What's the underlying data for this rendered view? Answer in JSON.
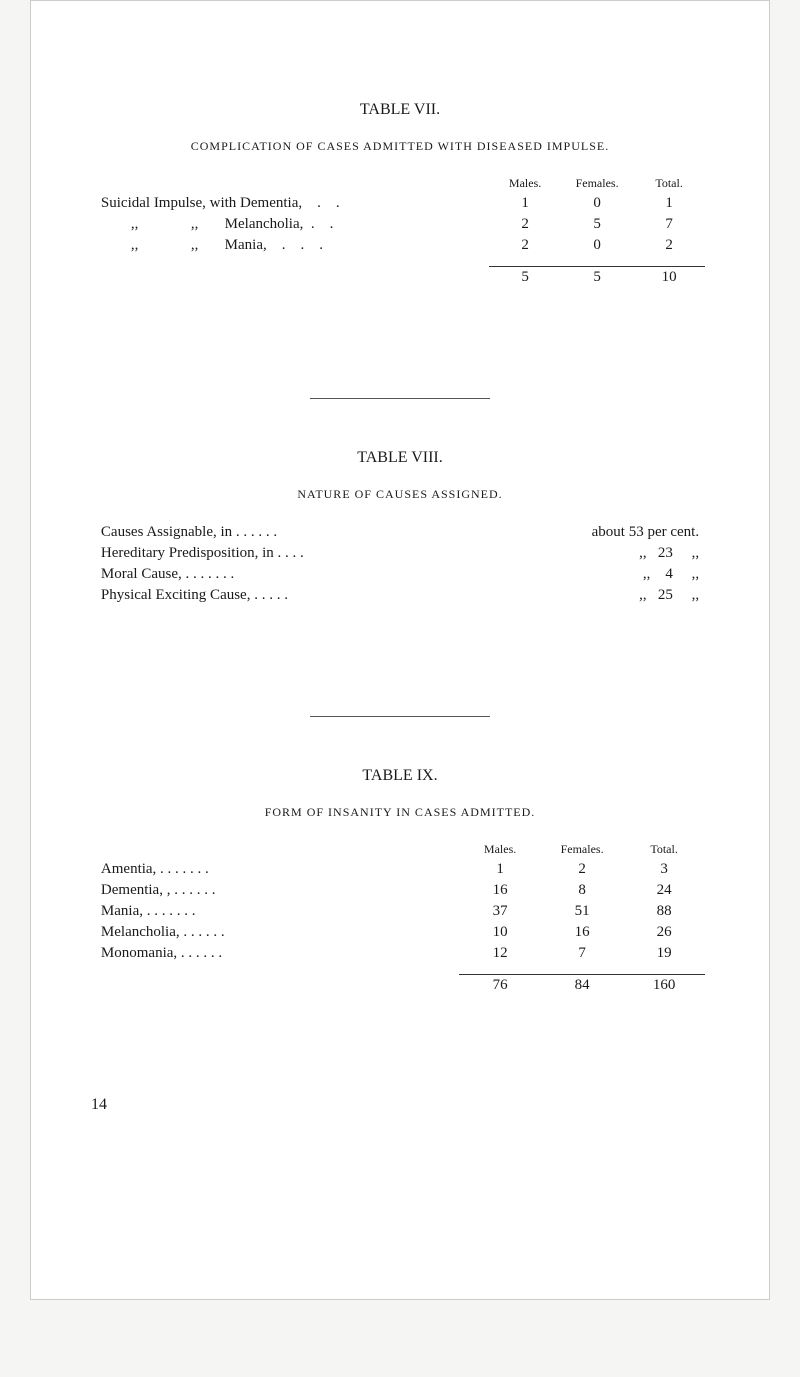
{
  "table7": {
    "title": "TABLE VII.",
    "subtitle": "COMPLICATION OF CASES ADMITTED WITH DISEASED IMPULSE.",
    "headers": {
      "males": "Males.",
      "females": "Females.",
      "total": "Total."
    },
    "rows": [
      {
        "label": "Suicidal Impulse, with Dementia,    .    .",
        "m": "1",
        "f": "0",
        "t": "1"
      },
      {
        "label": "        ,,              ,,       Melancholia,  .    .",
        "m": "2",
        "f": "5",
        "t": "7"
      },
      {
        "label": "        ,,              ,,       Mania,    .    .    .",
        "m": "2",
        "f": "0",
        "t": "2"
      }
    ],
    "totals": {
      "m": "5",
      "f": "5",
      "t": "10"
    }
  },
  "table8": {
    "title": "TABLE VIII.",
    "subtitle": "NATURE OF CAUSES ASSIGNED.",
    "rows": [
      {
        "label": "Causes Assignable, in .       .       .       .       .       .",
        "val": "about 53 per cent."
      },
      {
        "label": "Hereditary Predisposition, in     .       .       .       .",
        "val": ",,   23     ,,"
      },
      {
        "label": "Moral Cause,      .       .       .       .       .       .       .",
        "val": ",,    4     ,,"
      },
      {
        "label": "Physical Exciting Cause,    .       .       .       .       .",
        "val": ",,   25     ,,"
      }
    ]
  },
  "table9": {
    "title": "TABLE IX.",
    "subtitle": "FORM OF INSANITY IN CASES ADMITTED.",
    "headers": {
      "males": "Males.",
      "females": "Females.",
      "total": "Total."
    },
    "rows": [
      {
        "label": "Amentia,  .       .       .       .       .       .       .",
        "m": "1",
        "f": "2",
        "t": "3"
      },
      {
        "label": "Dementia, ,       .       .       .       .       .       .",
        "m": "16",
        "f": "8",
        "t": "24"
      },
      {
        "label": "Mania,      .       .       .       .       .       .       .",
        "m": "37",
        "f": "51",
        "t": "88"
      },
      {
        "label": "Melancholia,      .       .       .       .       .       .",
        "m": "10",
        "f": "16",
        "t": "26"
      },
      {
        "label": "Monomania,       .       .       .       .       .       .",
        "m": "12",
        "f": "7",
        "t": "19"
      }
    ],
    "totals": {
      "m": "76",
      "f": "84",
      "t": "160"
    }
  },
  "page_number": "14"
}
